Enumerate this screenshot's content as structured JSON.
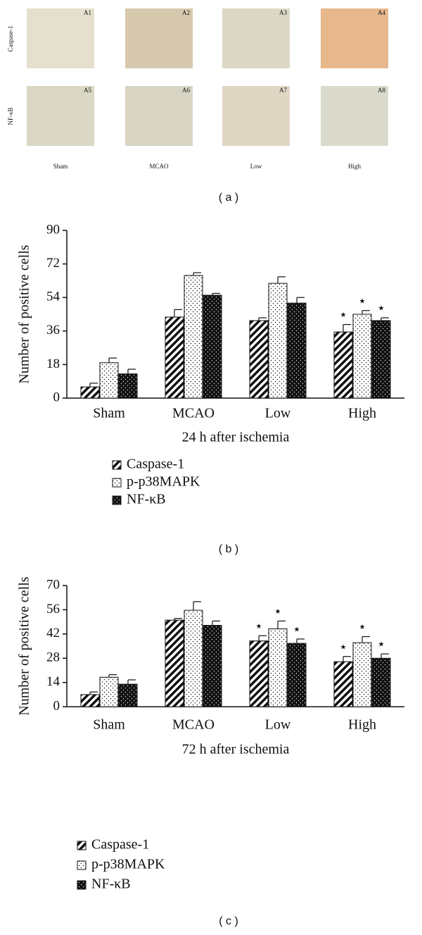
{
  "panel_a": {
    "row_labels": [
      "Caspase-1",
      "NF-κB"
    ],
    "column_labels": [
      "Sham",
      "MCAO",
      "Low",
      "High"
    ],
    "image_labels": [
      "A1",
      "A2",
      "A3",
      "A4",
      "A5",
      "A6",
      "A7",
      "A8"
    ],
    "panel_label": "( a )"
  },
  "chart_data": [
    {
      "type": "bar",
      "panel_label": "( b )",
      "xlabel": "24 h after ischemia",
      "ylabel": "Number of positive cells",
      "categories": [
        "Sham",
        "MCAO",
        "Low",
        "High"
      ],
      "ylim": [
        0,
        90
      ],
      "yticks": [
        0,
        18,
        36,
        54,
        72,
        90
      ],
      "series": [
        {
          "name": "Caspase-1",
          "pattern": "hatch",
          "values": [
            6,
            43.5,
            41.6,
            35.5
          ],
          "errors": [
            2,
            4,
            1.5,
            4
          ],
          "significance": [
            null,
            null,
            null,
            "⋆"
          ]
        },
        {
          "name": "p-p38MAPK",
          "pattern": "dots",
          "values": [
            19,
            65.8,
            61.6,
            45
          ],
          "errors": [
            2.5,
            1.5,
            3.5,
            2
          ],
          "significance": [
            null,
            null,
            null,
            "⋆"
          ]
        },
        {
          "name": "NF-κB",
          "pattern": "darkdots",
          "values": [
            13,
            55.2,
            51,
            41.6
          ],
          "errors": [
            2.5,
            1,
            3,
            1.5
          ],
          "significance": [
            null,
            null,
            null,
            "⋆"
          ]
        }
      ]
    },
    {
      "type": "bar",
      "panel_label": "( c )",
      "xlabel": "72 h after ischemia",
      "ylabel": "Number of positive cells",
      "categories": [
        "Sham",
        "MCAO",
        "Low",
        "High"
      ],
      "ylim": [
        0,
        70
      ],
      "yticks": [
        0,
        14,
        28,
        42,
        56,
        70
      ],
      "series": [
        {
          "name": "Caspase-1",
          "pattern": "hatch",
          "values": [
            7,
            50,
            38,
            26
          ],
          "errors": [
            1.5,
            1,
            3,
            3
          ],
          "significance": [
            null,
            null,
            "⋆",
            "⋆"
          ]
        },
        {
          "name": "p-p38MAPK",
          "pattern": "dots",
          "values": [
            17,
            55.7,
            45,
            37
          ],
          "errors": [
            1.5,
            5,
            4.5,
            3.5
          ],
          "significance": [
            null,
            null,
            "⋆",
            "⋆"
          ]
        },
        {
          "name": "NF-κB",
          "pattern": "darkdots",
          "values": [
            13,
            47,
            36.6,
            28
          ],
          "errors": [
            2.5,
            2.5,
            2.5,
            2.5
          ],
          "significance": [
            null,
            null,
            "⋆",
            "⋆"
          ]
        }
      ]
    }
  ]
}
